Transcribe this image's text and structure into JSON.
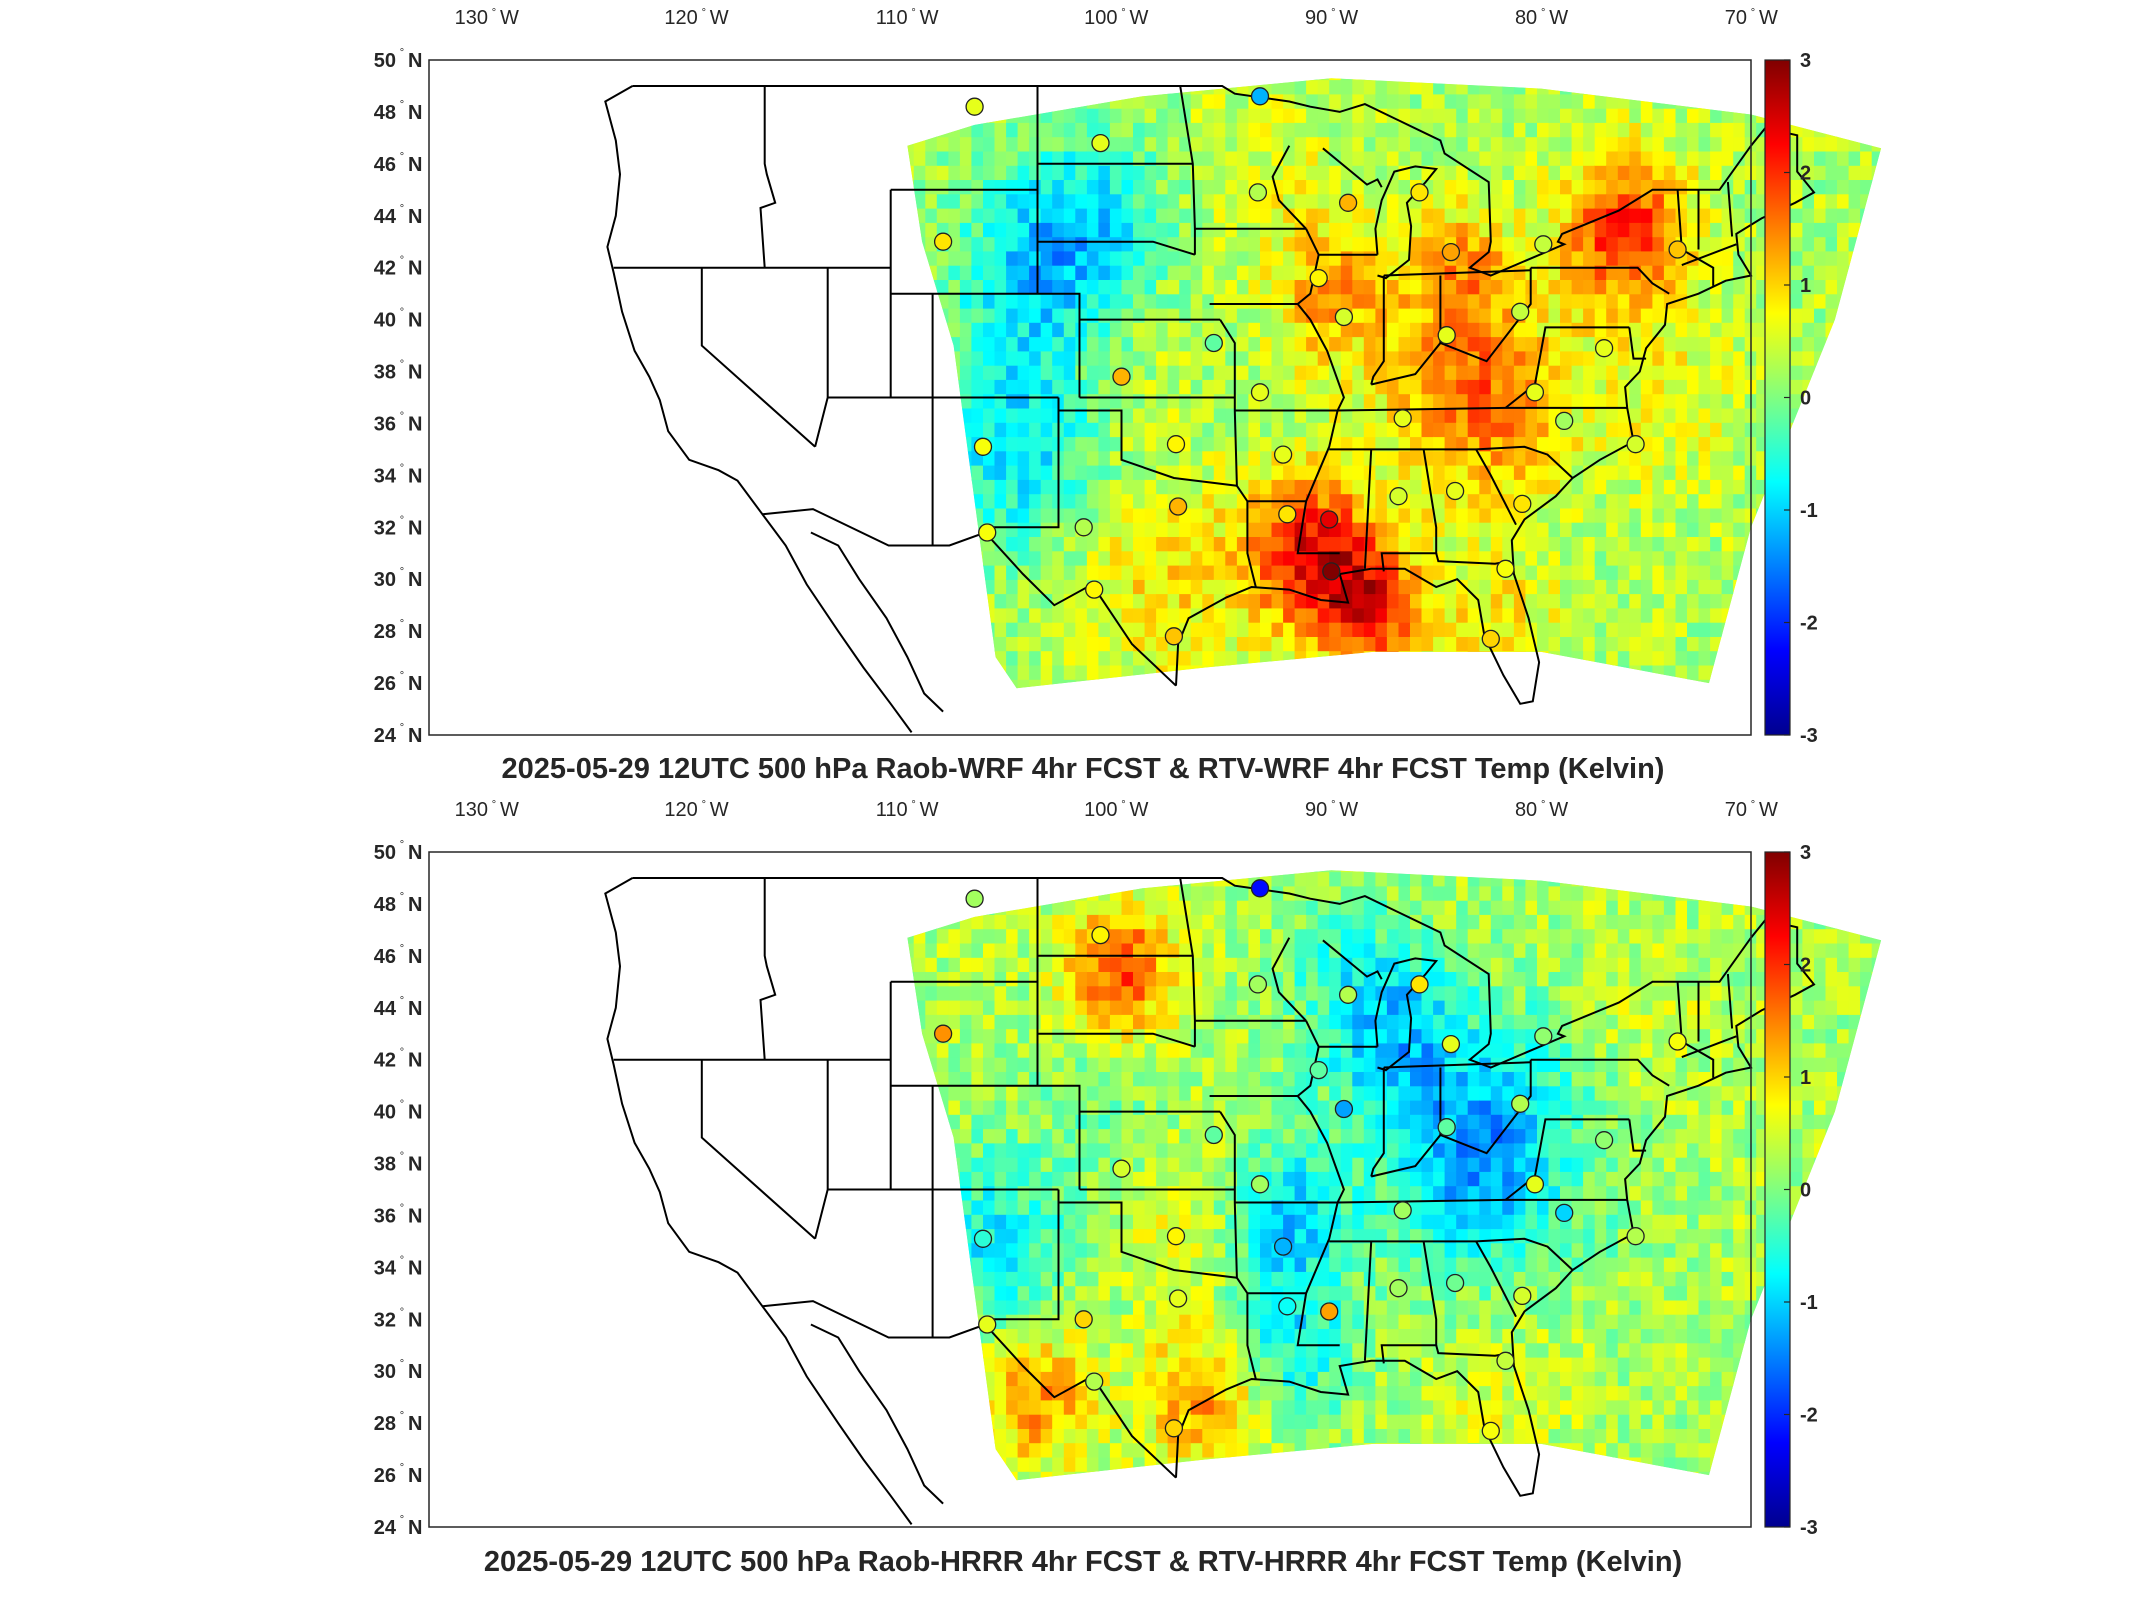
{
  "colorbar": {
    "colors": [
      "#00008f",
      "#0000ff",
      "#0080ff",
      "#00ffff",
      "#80ff80",
      "#ffff00",
      "#ff8000",
      "#ff0000",
      "#800000"
    ],
    "ticks": [
      "3",
      "2",
      "1",
      "0",
      "-1",
      "-2",
      "-3"
    ],
    "range": [
      -3,
      3
    ]
  },
  "map_style": {
    "field_low": "#38d6e8",
    "field_mid": "#8ce27a",
    "field_high": "#f5e51e",
    "field_hot": "#f08a1e",
    "coastline": "#000000"
  },
  "panels": [
    {
      "title": "2025-05-29 12UTC 500 hPa Raob-WRF 4hr FCST & RTV-WRF 4hr FCST Temp (Kelvin)",
      "lon_labels": [
        "130",
        "120",
        "110",
        "100",
        "90",
        "80",
        "70"
      ],
      "lon_suffix": "W",
      "lat_labels": [
        "50",
        "48",
        "46",
        "44",
        "42",
        "40",
        "38",
        "36",
        "34",
        "32",
        "30",
        "28",
        "26",
        "24"
      ],
      "lat_suffix": "N",
      "degree_symbol": "°",
      "stations": [
        {
          "lon": -107.0,
          "lat": 48.2,
          "value": 0.6
        },
        {
          "lon": -93.4,
          "lat": 48.6,
          "value": -1.2
        },
        {
          "lon": -101.0,
          "lat": 46.8,
          "value": 0.6
        },
        {
          "lon": -93.5,
          "lat": 44.9,
          "value": 0.3
        },
        {
          "lon": -89.2,
          "lat": 44.5,
          "value": 1.2
        },
        {
          "lon": -85.8,
          "lat": 44.9,
          "value": 0.9
        },
        {
          "lon": -108.5,
          "lat": 43.0,
          "value": 0.9
        },
        {
          "lon": -90.6,
          "lat": 41.6,
          "value": 0.8
        },
        {
          "lon": -84.3,
          "lat": 42.6,
          "value": 1.3
        },
        {
          "lon": -79.9,
          "lat": 42.9,
          "value": 0.4
        },
        {
          "lon": -73.5,
          "lat": 42.7,
          "value": 1.1
        },
        {
          "lon": -89.4,
          "lat": 40.1,
          "value": 0.5
        },
        {
          "lon": -81.0,
          "lat": 40.3,
          "value": 0.4
        },
        {
          "lon": -84.5,
          "lat": 39.4,
          "value": 0.6
        },
        {
          "lon": -95.6,
          "lat": 39.1,
          "value": -0.2
        },
        {
          "lon": -100.0,
          "lat": 37.8,
          "value": 1.2
        },
        {
          "lon": -93.4,
          "lat": 37.2,
          "value": 0.6
        },
        {
          "lon": -86.6,
          "lat": 36.2,
          "value": 0.6
        },
        {
          "lon": -80.3,
          "lat": 37.2,
          "value": 0.6
        },
        {
          "lon": -77.0,
          "lat": 38.9,
          "value": 0.6
        },
        {
          "lon": -78.9,
          "lat": 36.1,
          "value": 0.2
        },
        {
          "lon": -106.6,
          "lat": 35.1,
          "value": 0.7
        },
        {
          "lon": -97.4,
          "lat": 35.2,
          "value": 0.8
        },
        {
          "lon": -92.3,
          "lat": 34.8,
          "value": 0.6
        },
        {
          "lon": -75.5,
          "lat": 35.2,
          "value": 0.5
        },
        {
          "lon": -101.8,
          "lat": 32.0,
          "value": 0.3
        },
        {
          "lon": -97.3,
          "lat": 32.8,
          "value": 1.2
        },
        {
          "lon": -92.1,
          "lat": 32.5,
          "value": 0.9
        },
        {
          "lon": -90.1,
          "lat": 32.3,
          "value": 2.4
        },
        {
          "lon": -86.8,
          "lat": 33.2,
          "value": 0.5
        },
        {
          "lon": -84.1,
          "lat": 33.4,
          "value": 0.6
        },
        {
          "lon": -80.9,
          "lat": 32.9,
          "value": 0.9
        },
        {
          "lon": -106.4,
          "lat": 31.8,
          "value": 0.7
        },
        {
          "lon": -101.3,
          "lat": 29.6,
          "value": 0.8
        },
        {
          "lon": -90.0,
          "lat": 30.3,
          "value": 3.0
        },
        {
          "lon": -81.7,
          "lat": 30.4,
          "value": 0.7
        },
        {
          "lon": -97.5,
          "lat": 27.8,
          "value": 1.1
        },
        {
          "lon": -82.4,
          "lat": 27.7,
          "value": 1.0
        }
      ]
    },
    {
      "title": "2025-05-29 12UTC 500 hPa Raob-HRRR 4hr FCST & RTV-HRRR 4hr FCST Temp (Kelvin)",
      "lon_labels": [
        "130",
        "120",
        "110",
        "100",
        "90",
        "80",
        "70"
      ],
      "lon_suffix": "W",
      "lat_labels": [
        "50",
        "48",
        "46",
        "44",
        "42",
        "40",
        "38",
        "36",
        "34",
        "32",
        "30",
        "28",
        "26",
        "24"
      ],
      "lat_suffix": "N",
      "degree_symbol": "°",
      "stations": [
        {
          "lon": -107.0,
          "lat": 48.2,
          "value": 0.2
        },
        {
          "lon": -93.4,
          "lat": 48.6,
          "value": -2.2
        },
        {
          "lon": -101.0,
          "lat": 46.8,
          "value": 0.8
        },
        {
          "lon": -93.5,
          "lat": 44.9,
          "value": 0.2
        },
        {
          "lon": -89.2,
          "lat": 44.5,
          "value": 0.3
        },
        {
          "lon": -85.8,
          "lat": 44.9,
          "value": 0.9
        },
        {
          "lon": -108.5,
          "lat": 43.0,
          "value": 1.4
        },
        {
          "lon": -90.6,
          "lat": 41.6,
          "value": -0.2
        },
        {
          "lon": -84.3,
          "lat": 42.6,
          "value": 0.6
        },
        {
          "lon": -79.9,
          "lat": 42.9,
          "value": 0.1
        },
        {
          "lon": -73.5,
          "lat": 42.7,
          "value": 0.7
        },
        {
          "lon": -89.4,
          "lat": 40.1,
          "value": -1.3
        },
        {
          "lon": -81.0,
          "lat": 40.3,
          "value": 0.3
        },
        {
          "lon": -84.5,
          "lat": 39.4,
          "value": -0.2
        },
        {
          "lon": -95.6,
          "lat": 39.1,
          "value": -0.2
        },
        {
          "lon": -100.0,
          "lat": 37.8,
          "value": 0.5
        },
        {
          "lon": -93.4,
          "lat": 37.2,
          "value": 0.2
        },
        {
          "lon": -86.6,
          "lat": 36.2,
          "value": 0.2
        },
        {
          "lon": -80.3,
          "lat": 37.2,
          "value": 0.6
        },
        {
          "lon": -77.0,
          "lat": 38.9,
          "value": 0.1
        },
        {
          "lon": -78.9,
          "lat": 36.1,
          "value": -1.0
        },
        {
          "lon": -106.6,
          "lat": 35.1,
          "value": -0.5
        },
        {
          "lon": -97.4,
          "lat": 35.2,
          "value": 0.8
        },
        {
          "lon": -92.3,
          "lat": 34.8,
          "value": -1.2
        },
        {
          "lon": -75.5,
          "lat": 35.2,
          "value": 0.3
        },
        {
          "lon": -101.8,
          "lat": 32.0,
          "value": 1.0
        },
        {
          "lon": -97.3,
          "lat": 32.8,
          "value": 0.6
        },
        {
          "lon": -92.1,
          "lat": 32.5,
          "value": -0.7
        },
        {
          "lon": -90.1,
          "lat": 32.3,
          "value": 1.3
        },
        {
          "lon": -86.8,
          "lat": 33.2,
          "value": 0.2
        },
        {
          "lon": -84.1,
          "lat": 33.4,
          "value": -0.1
        },
        {
          "lon": -80.9,
          "lat": 32.9,
          "value": 0.5
        },
        {
          "lon": -106.4,
          "lat": 31.8,
          "value": 0.6
        },
        {
          "lon": -101.3,
          "lat": 29.6,
          "value": 0.3
        },
        {
          "lon": -81.7,
          "lat": 30.4,
          "value": 0.4
        },
        {
          "lon": -97.5,
          "lat": 27.8,
          "value": 1.0
        },
        {
          "lon": -82.4,
          "lat": 27.7,
          "value": 0.7
        }
      ]
    }
  ]
}
